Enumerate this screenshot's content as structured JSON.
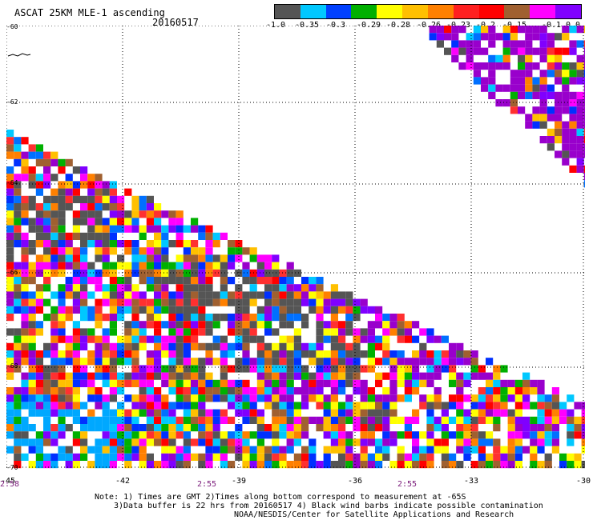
{
  "header": {
    "title": "ASCAT 25KM MLE-1 ascending",
    "date": "20160517"
  },
  "colorbar": {
    "segments": [
      "#555555",
      "#00c8ff",
      "#0040ff",
      "#00b000",
      "#ffff00",
      "#ffc000",
      "#ff8000",
      "#ff2020",
      "#ff0000",
      "#a06030",
      "#ff00ff",
      "#8000ff"
    ],
    "tick_labels": [
      "-1.0",
      "-0.35",
      "-0.3",
      "-0.29",
      "-0.28",
      "-0.26",
      "-0.23",
      "-0.2",
      "-0.15",
      "-0.1",
      "0.0"
    ]
  },
  "map": {
    "lat_labels": [
      "-60",
      "-62",
      "-64",
      "-66",
      "-68",
      "-70"
    ],
    "lon_labels": [
      "-45",
      "-42",
      "-39",
      "-36",
      "-33",
      "-30"
    ],
    "time_labels": [
      "2:58",
      "2:55",
      "2:55"
    ],
    "palette": [
      "#555555",
      "#00c8ff",
      "#0070ff",
      "#0030ff",
      "#00b000",
      "#ffff00",
      "#ffc000",
      "#ff8000",
      "#ff3030",
      "#ff0000",
      "#a06030",
      "#ff00ff",
      "#8000ff",
      "#9900cc"
    ]
  },
  "notes": {
    "line1": "Note: 1) Times are GMT 2)Times along bottom correspond to measurement at -65S",
    "line2": "3)Data buffer is 22 hrs from 20160517 4) Black wind barbs indicate possible contamination",
    "line3": "NOAA/NESDIS/Center for Satellite Applications and Research"
  }
}
